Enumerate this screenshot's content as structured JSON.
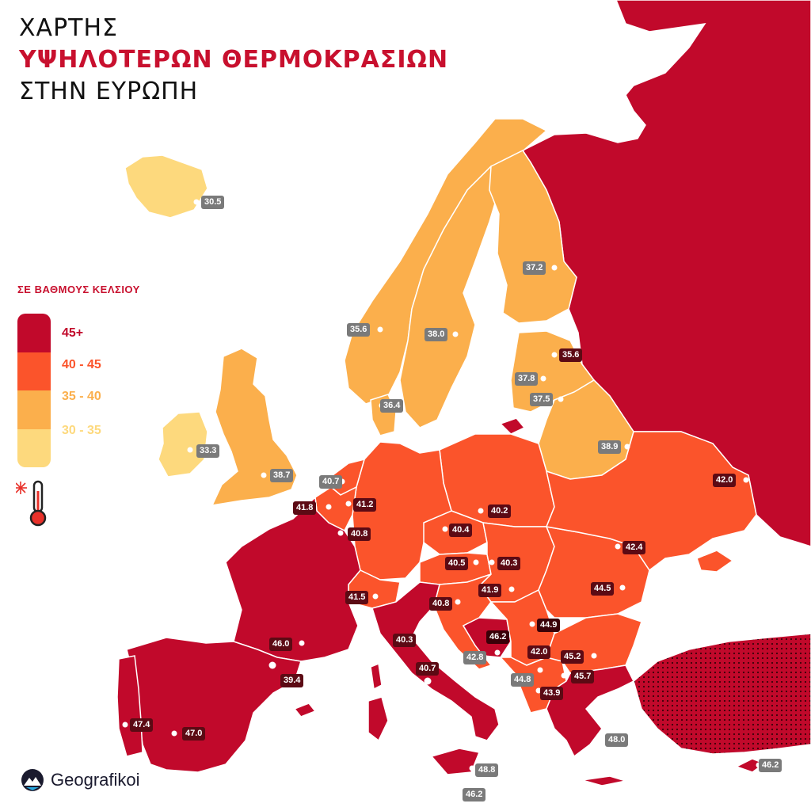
{
  "title": {
    "line1": "ΧΑΡΤΗΣ",
    "line2": "ΥΨΗΛΟΤΕΡΩΝ ΘΕΡΜΟΚΡΑΣΙΩΝ",
    "line3": "ΣΤΗΝ ΕΥΡΩΠΗ"
  },
  "legend": {
    "title": "ΣΕ ΒΑΘΜΟΥΣ ΚΕΛΣΙΟΥ",
    "items": [
      {
        "label": "45+",
        "color": "#c1092b"
      },
      {
        "label": "40 - 45",
        "color": "#fb542b"
      },
      {
        "label": "35 - 40",
        "color": "#fbaf4c"
      },
      {
        "label": "30 - 35",
        "color": "#fdd97d"
      }
    ]
  },
  "colors": {
    "sea": "#ffffff",
    "border": "#ffffff",
    "t45": "#c1092b",
    "t40": "#fb542b",
    "t35": "#fbaf4c",
    "t30": "#fdd97d",
    "label_dark": "#5c0a14",
    "label_gray": "#7a7a7a"
  },
  "cities": [
    {
      "value": "30.5"
    },
    {
      "value": "33.3"
    },
    {
      "value": "38.7"
    },
    {
      "value": "35.6"
    },
    {
      "value": "38.0"
    },
    {
      "value": "37.2"
    },
    {
      "value": "36.4"
    },
    {
      "value": "35.6"
    },
    {
      "value": "37.8"
    },
    {
      "value": "37.5"
    },
    {
      "value": "38.9"
    },
    {
      "value": "40.7"
    },
    {
      "value": "41.8"
    },
    {
      "value": "41.2"
    },
    {
      "value": "40.8"
    },
    {
      "value": "40.2"
    },
    {
      "value": "40.4"
    },
    {
      "value": "40.5"
    },
    {
      "value": "40.3"
    },
    {
      "value": "42.0"
    },
    {
      "value": "42.4"
    },
    {
      "value": "41.9"
    },
    {
      "value": "44.5"
    },
    {
      "value": "41.5"
    },
    {
      "value": "40.8"
    },
    {
      "value": "44.9"
    },
    {
      "value": "46.2"
    },
    {
      "value": "42.0"
    },
    {
      "value": "45.2"
    },
    {
      "value": "42.8"
    },
    {
      "value": "44.8"
    },
    {
      "value": "45.7"
    },
    {
      "value": "43.9"
    },
    {
      "value": "46.0"
    },
    {
      "value": "39.4"
    },
    {
      "value": "40.3"
    },
    {
      "value": "40.7"
    },
    {
      "value": "47.4"
    },
    {
      "value": "47.0"
    },
    {
      "value": "48.0"
    },
    {
      "value": "48.8"
    },
    {
      "value": "46.2"
    },
    {
      "value": "46.2"
    }
  ],
  "brand": {
    "name": "Geografikoi"
  },
  "icons": {
    "thermometer": "thermometer-icon",
    "sun": "sun-icon",
    "logo": "geografikoi-logo-icon"
  }
}
